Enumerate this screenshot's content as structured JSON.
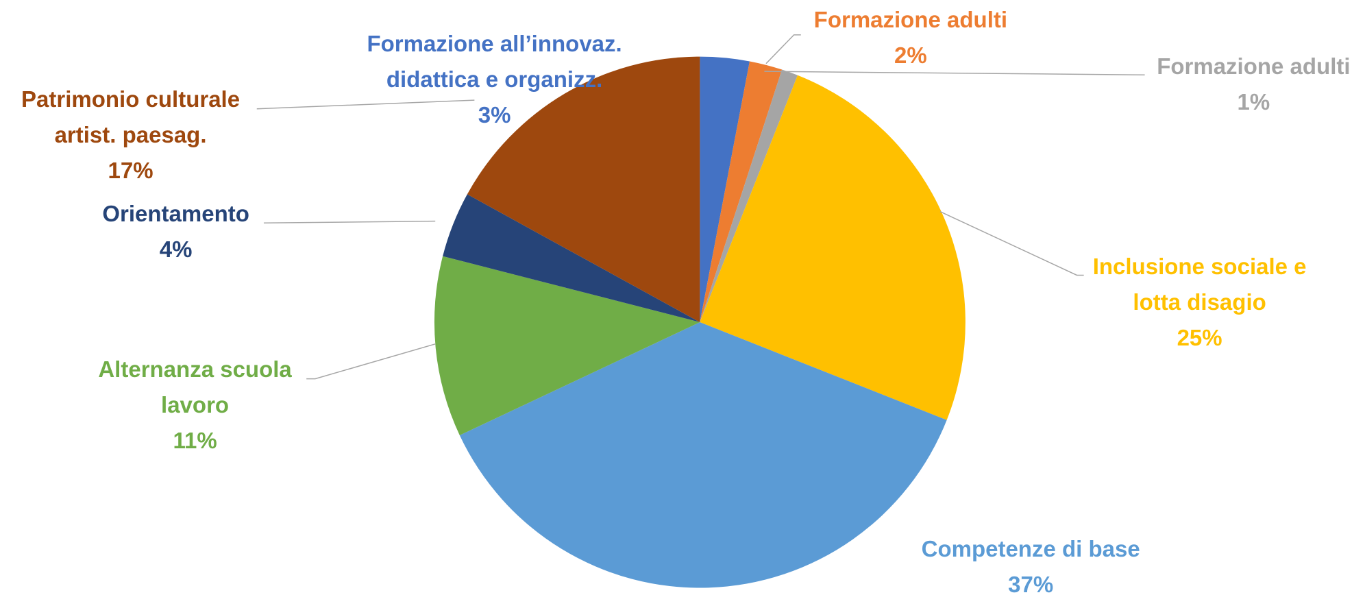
{
  "chart_data": {
    "type": "pie",
    "categories": [
      "Formazione all’innovaz.\ndidattica e organizz.",
      "Formazione adulti",
      "Formazione adulti",
      "Inclusione sociale e\nlotta disagio",
      "Competenze di base",
      "Alternanza scuola\nlavoro",
      "Orientamento",
      "Patrimonio culturale\nartist. paesag."
    ],
    "values": [
      3,
      2,
      1,
      25,
      37,
      11,
      4,
      17
    ],
    "value_labels": [
      "3%",
      "2%",
      "1%",
      "25%",
      "37%",
      "11%",
      "4%",
      "17%"
    ],
    "colors": [
      "#4472c4",
      "#ed7d31",
      "#a5a5a5",
      "#ffc000",
      "#5b9bd5",
      "#70ad47",
      "#264478",
      "#9e480e"
    ]
  }
}
